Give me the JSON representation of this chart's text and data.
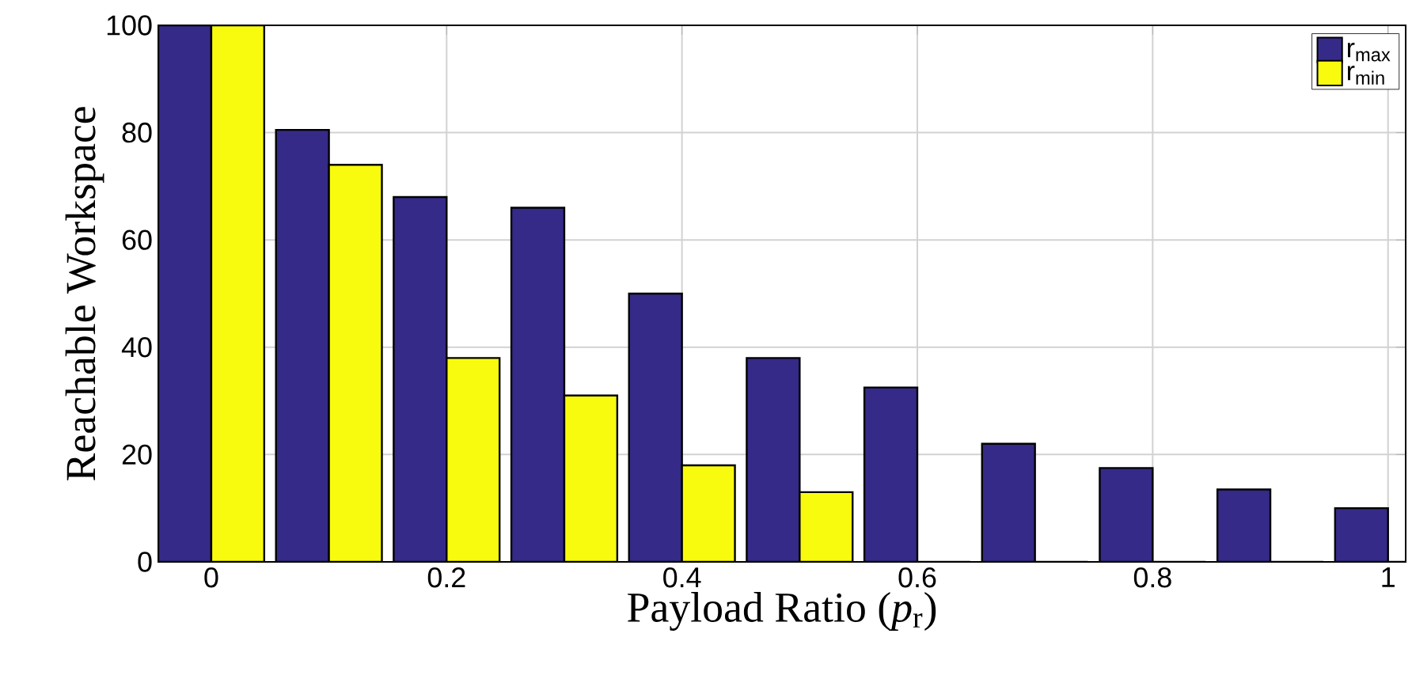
{
  "chart_data": {
    "type": "bar",
    "xlabel": "Payload Ratio (*p*$_{r}$)",
    "ylabel": "Reachable Workspace",
    "x": [
      0,
      0.1,
      0.2,
      0.3,
      0.4,
      0.5,
      0.6,
      0.7,
      0.8,
      0.9,
      1
    ],
    "series": [
      {
        "name": "r$_{max}$",
        "color": "#352a87",
        "values": [
          100,
          80.5,
          68,
          66,
          50,
          38,
          32.5,
          22,
          17.5,
          13.5,
          10
        ]
      },
      {
        "name": "r$_{min}$",
        "color": "#f9fb0e",
        "values": [
          100,
          74,
          38,
          31,
          18,
          13,
          0,
          0,
          0,
          0,
          0
        ]
      }
    ],
    "xlim": [
      -0.045,
      1.015
    ],
    "ylim": [
      0,
      100
    ],
    "xticks": [
      0,
      {
        "value": 0.2,
        "label": "0.2"
      },
      {
        "value": 0.4,
        "label": "0.4"
      },
      {
        "value": 0.6,
        "label": "0.6"
      },
      {
        "value": 0.8,
        "label": "0.8"
      },
      1
    ],
    "yticks": [
      0,
      20,
      40,
      60,
      80,
      100
    ],
    "grid": true,
    "legend": "top right"
  }
}
